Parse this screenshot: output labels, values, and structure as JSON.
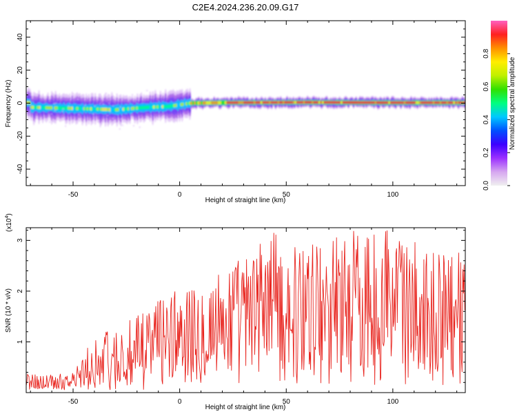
{
  "title": "C2E4.2024.236.20.09.G17",
  "chart_data": [
    {
      "type": "heatmap",
      "title": "C2E4.2024.236.20.09.G17",
      "xlabel": "Height of straight line (km)",
      "ylabel": "Frequency (Hz)",
      "xlim": [
        -72,
        134
      ],
      "ylim": [
        -50,
        50
      ],
      "xticks": [
        -50,
        0,
        50,
        100
      ],
      "yticks": [
        -40,
        -20,
        0,
        20,
        40
      ],
      "xtick_labels": [
        "-50",
        "0",
        "50",
        "100"
      ],
      "ytick_labels": [
        "-40",
        "-20",
        "0",
        "20",
        "40"
      ],
      "colorbar": {
        "label": "Normalized spectral amplitude",
        "range": [
          0,
          1
        ],
        "ticks": [
          0.0,
          0.2,
          0.4,
          0.6,
          0.8
        ],
        "tick_labels": [
          "0.0",
          "0.2",
          "0.4",
          "0.6",
          "0.8"
        ],
        "colormap": [
          "#f0f0f0",
          "#d6a6f0",
          "#9b30ff",
          "#3b00ff",
          "#0050ff",
          "#00c8ff",
          "#00ff80",
          "#30e000",
          "#c0f000",
          "#ffee00",
          "#ff9000",
          "#ff2020",
          "#ff60c0"
        ]
      },
      "band_center_hz": [
        {
          "x": -70,
          "y": -2.5
        },
        {
          "x": -55,
          "y": -3
        },
        {
          "x": -40,
          "y": -3.5
        },
        {
          "x": -30,
          "y": -4
        },
        {
          "x": -15,
          "y": -2.5
        },
        {
          "x": -5,
          "y": -2
        },
        {
          "x": 5,
          "y": 0
        },
        {
          "x": 20,
          "y": 0.3
        },
        {
          "x": 60,
          "y": 0.5
        },
        {
          "x": 100,
          "y": 0.3
        },
        {
          "x": 134,
          "y": 0.3
        }
      ]
    },
    {
      "type": "line",
      "xlabel": "Height of straight line (km)",
      "ylabel": "SNR (10 * v/v)",
      "y_multiplier_label": "(x10",
      "y_multiplier_exp": "4",
      "y_multiplier_close": ")",
      "xlim": [
        -72,
        134
      ],
      "ylim": [
        0,
        3.25
      ],
      "xticks": [
        -50,
        0,
        50,
        100
      ],
      "yticks": [
        1,
        2,
        3
      ],
      "xtick_labels": [
        "-50",
        "0",
        "50",
        "100"
      ],
      "ytick_labels": [
        "1",
        "2",
        "3"
      ],
      "color": "#e8221c",
      "envelope": [
        {
          "x": -72,
          "y": 0.35
        },
        {
          "x": -60,
          "y": 0.35
        },
        {
          "x": -50,
          "y": 0.4
        },
        {
          "x": -45,
          "y": 0.75
        },
        {
          "x": -38,
          "y": 1.1
        },
        {
          "x": -30,
          "y": 1.3
        },
        {
          "x": -20,
          "y": 1.45
        },
        {
          "x": -15,
          "y": 1.65
        },
        {
          "x": -5,
          "y": 1.85
        },
        {
          "x": 5,
          "y": 2.0
        },
        {
          "x": 15,
          "y": 2.2
        },
        {
          "x": 25,
          "y": 2.5
        },
        {
          "x": 35,
          "y": 2.6
        },
        {
          "x": 40,
          "y": 3.2
        },
        {
          "x": 50,
          "y": 2.75
        },
        {
          "x": 60,
          "y": 2.8
        },
        {
          "x": 70,
          "y": 2.95
        },
        {
          "x": 78,
          "y": 3.2
        },
        {
          "x": 85,
          "y": 3.0
        },
        {
          "x": 96,
          "y": 3.2
        },
        {
          "x": 105,
          "y": 2.9
        },
        {
          "x": 115,
          "y": 2.75
        },
        {
          "x": 125,
          "y": 2.7
        },
        {
          "x": 134,
          "y": 2.6
        }
      ]
    }
  ]
}
